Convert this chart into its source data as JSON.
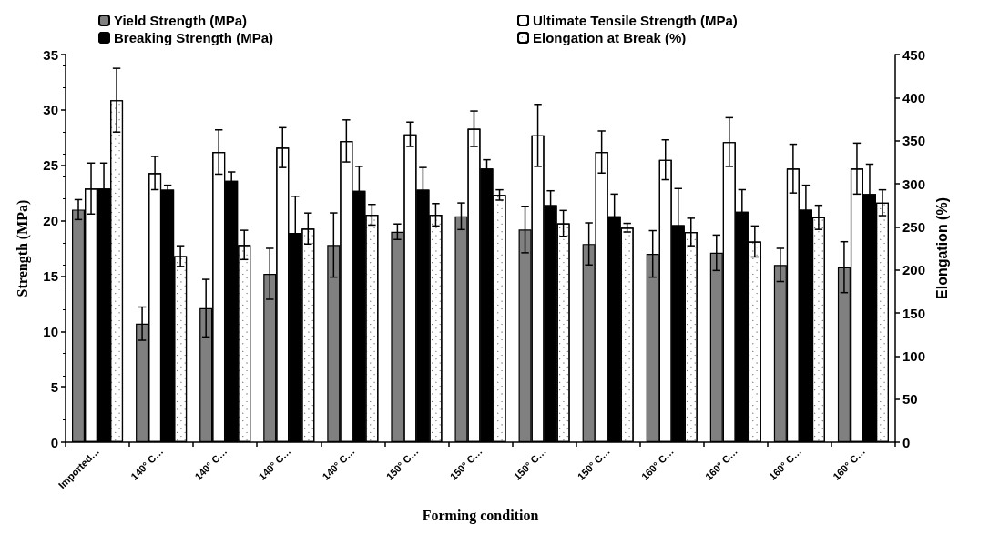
{
  "chart_data": {
    "type": "bar",
    "xlabel": "Forming condition",
    "ylabel": "Strength (MPa)",
    "y2label": "Elongation (%)",
    "categories": [
      "Imported…",
      "140° C…",
      "140° C…",
      "140° C…",
      "140° C…",
      "150° C…",
      "150° C…",
      "150° C…",
      "150° C…",
      "160° C…",
      "160° C…",
      "160° C…",
      "160° C…"
    ],
    "series": [
      {
        "name": "Yield Strength (MPa)",
        "color": "#808080",
        "values": [
          21,
          10.7,
          12.1,
          15.2,
          17.8,
          19.0,
          20.4,
          19.2,
          17.9,
          17.0,
          17.1,
          16.0,
          15.8
        ],
        "errors": [
          0.9,
          1.5,
          2.6,
          2.3,
          2.9,
          0.7,
          1.2,
          2.1,
          1.9,
          2.1,
          1.6,
          1.5,
          2.3
        ]
      },
      {
        "name": "Ultimate Tensile Strength (MPa)",
        "color": "#ffffff",
        "values": [
          22.9,
          24.3,
          26.2,
          26.6,
          27.2,
          27.8,
          28.3,
          27.7,
          26.2,
          25.5,
          27.1,
          24.7,
          24.7
        ],
        "errors": [
          2.3,
          1.5,
          2,
          1.8,
          1.9,
          1.1,
          1.6,
          2.8,
          1.9,
          1.8,
          2.2,
          2.2,
          2.3
        ]
      },
      {
        "name": "Breaking Strength (MPa)",
        "color": "#000000",
        "values": [
          22.9,
          22.8,
          23.6,
          18.9,
          22.7,
          22.8,
          24.7,
          21.4,
          20.4,
          19.6,
          20.8,
          21,
          22.4
        ],
        "errors": [
          2.3,
          0.4,
          0.8,
          3.3,
          2.2,
          2,
          0.8,
          1.3,
          2,
          3.3,
          2,
          2.2,
          2.7
        ]
      },
      {
        "name": "Elongation at Break (%)",
        "color": "#ffffff",
        "axis": "y2",
        "values": [
          397,
          216,
          229,
          248,
          264,
          264,
          287,
          254,
          249,
          244,
          233,
          261,
          278
        ],
        "errors": [
          37,
          12,
          17,
          18,
          12,
          13,
          6,
          15,
          5,
          16,
          18,
          14,
          15
        ]
      }
    ],
    "ylim": [
      0,
      35
    ],
    "yticks": [
      0,
      5,
      10,
      15,
      20,
      25,
      30,
      35
    ],
    "y2lim": [
      0,
      450
    ],
    "y2ticks": [
      0,
      50,
      100,
      150,
      200,
      250,
      300,
      350,
      400,
      450
    ],
    "grid": false,
    "legend": "top"
  }
}
